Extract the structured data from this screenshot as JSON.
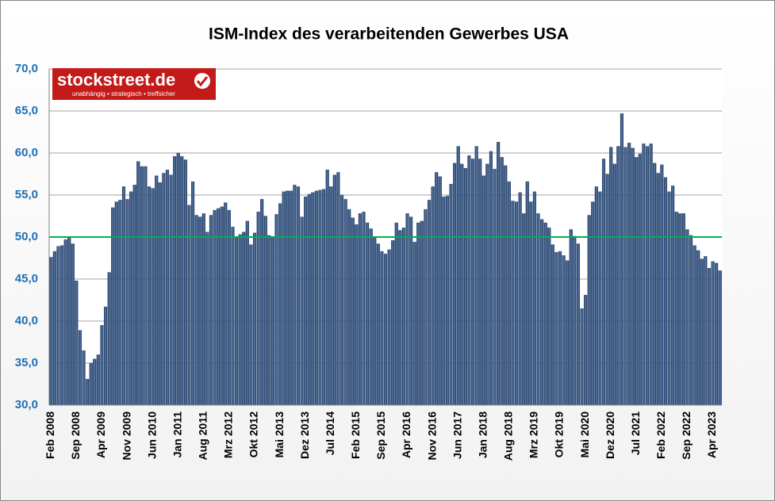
{
  "chart_data": {
    "type": "bar",
    "title": "ISM-Index des verarbeitenden Gewerbes USA",
    "logo": {
      "name": "stockstreet.de",
      "tagline": "unabhängig • strategisch • treffsicher"
    },
    "categories": [
      "Feb 2008",
      null,
      null,
      null,
      null,
      null,
      null,
      "Sep 2008",
      null,
      null,
      null,
      null,
      null,
      null,
      "Apr 2009",
      null,
      null,
      null,
      null,
      null,
      null,
      "Nov 2009",
      null,
      null,
      null,
      null,
      null,
      null,
      "Jun 2010",
      null,
      null,
      null,
      null,
      null,
      null,
      "Jan 2011",
      null,
      null,
      null,
      null,
      null,
      null,
      "Aug 2011",
      null,
      null,
      null,
      null,
      null,
      null,
      "Mrz 2012",
      null,
      null,
      null,
      null,
      null,
      null,
      "Okt 2012",
      null,
      null,
      null,
      null,
      null,
      null,
      "Mai 2013",
      null,
      null,
      null,
      null,
      null,
      null,
      "Dez 2013",
      null,
      null,
      null,
      null,
      null,
      null,
      "Jul 2014",
      null,
      null,
      null,
      null,
      null,
      null,
      "Feb 2015",
      null,
      null,
      null,
      null,
      null,
      null,
      "Sep 2015",
      null,
      null,
      null,
      null,
      null,
      null,
      "Apr 2016",
      null,
      null,
      null,
      null,
      null,
      null,
      "Nov 2016",
      null,
      null,
      null,
      null,
      null,
      null,
      "Jun 2017",
      null,
      null,
      null,
      null,
      null,
      null,
      "Jan 2018",
      null,
      null,
      null,
      null,
      null,
      null,
      "Aug 2018",
      null,
      null,
      null,
      null,
      null,
      null,
      "Mrz 2019",
      null,
      null,
      null,
      null,
      null,
      null,
      "Okt 2019",
      null,
      null,
      null,
      null,
      null,
      null,
      "Mai 2020",
      null,
      null,
      null,
      null,
      null,
      null,
      "Dez 2020",
      null,
      null,
      null,
      null,
      null,
      null,
      "Jul 2021",
      null,
      null,
      null,
      null,
      null,
      null,
      "Feb 2022",
      null,
      null,
      null,
      null,
      null,
      null,
      "Sep 2022",
      null,
      null,
      null,
      null,
      null,
      null,
      "Apr 2023",
      null,
      null
    ],
    "values": [
      47.6,
      48.3,
      48.9,
      49.0,
      49.7,
      50.0,
      49.2,
      44.8,
      38.9,
      36.5,
      33.1,
      35.0,
      35.5,
      36.0,
      39.5,
      41.7,
      45.8,
      53.5,
      54.2,
      54.4,
      56.0,
      54.5,
      55.4,
      56.2,
      59.0,
      58.4,
      58.4,
      56.0,
      55.8,
      57.3,
      56.5,
      57.6,
      58.0,
      57.4,
      59.6,
      60.0,
      59.6,
      59.2,
      53.8,
      56.6,
      52.6,
      52.4,
      52.8,
      50.6,
      52.6,
      53.2,
      53.4,
      53.6,
      54.1,
      53.2,
      51.2,
      49.9,
      50.3,
      50.6,
      51.9,
      49.1,
      50.5,
      53.0,
      54.5,
      52.5,
      50.2,
      50.0,
      52.7,
      54.0,
      55.4,
      55.5,
      55.5,
      56.2,
      56.0,
      52.4,
      54.8,
      55.1,
      55.3,
      55.5,
      55.6,
      55.7,
      58.0,
      56.0,
      57.4,
      57.7,
      55.0,
      54.5,
      53.3,
      52.3,
      51.5,
      52.8,
      53.0,
      51.7,
      51.0,
      49.9,
      49.2,
      48.3,
      48.0,
      48.5,
      49.6,
      51.7,
      50.8,
      51.1,
      52.8,
      52.4,
      49.4,
      51.7,
      51.9,
      53.3,
      54.4,
      56.0,
      57.7,
      57.2,
      54.8,
      54.9,
      56.3,
      58.8,
      60.8,
      58.7,
      58.2,
      59.7,
      59.3,
      60.8,
      59.3,
      57.3,
      58.7,
      60.2,
      58.1,
      61.3,
      59.5,
      58.5,
      56.6,
      54.3,
      54.2,
      55.3,
      52.8,
      56.6,
      54.2,
      55.4,
      52.8,
      52.1,
      51.7,
      51.1,
      49.1,
      48.2,
      48.3,
      47.8,
      47.2,
      50.9,
      50.1,
      49.2,
      41.5,
      43.1,
      52.6,
      54.2,
      56.0,
      55.4,
      59.3,
      57.5,
      60.7,
      58.7,
      60.8,
      64.7,
      60.7,
      61.2,
      60.6,
      59.5,
      59.9,
      61.1,
      60.8,
      61.1,
      58.8,
      57.6,
      58.6,
      57.1,
      55.4,
      56.1,
      53.0,
      52.8,
      52.8,
      50.9,
      50.2,
      49.0,
      48.4,
      47.4,
      47.7,
      46.3,
      47.1,
      46.9,
      46.0
    ],
    "color": "#2b4a78",
    "ylim": [
      30,
      70
    ],
    "yticks": [
      {
        "value": 30,
        "label": "30,0"
      },
      {
        "value": 35,
        "label": "35,0"
      },
      {
        "value": 40,
        "label": "40,0"
      },
      {
        "value": 45,
        "label": "45,0"
      },
      {
        "value": 50,
        "label": "50,0"
      },
      {
        "value": 55,
        "label": "55,0"
      },
      {
        "value": 60,
        "label": "60,0"
      },
      {
        "value": 65,
        "label": "65,0"
      },
      {
        "value": 70,
        "label": "70,0"
      }
    ],
    "grid": true,
    "reference_line": {
      "value": 50,
      "color": "#00b050"
    }
  }
}
